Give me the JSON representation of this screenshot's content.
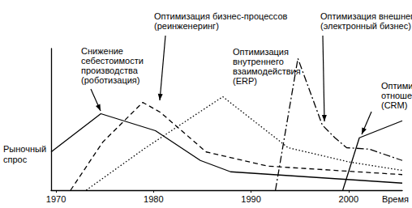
{
  "chart_data": {
    "type": "line",
    "x_label": "Время",
    "y_label": "Рыночный\nспрос",
    "xlim": [
      1969.5,
      2005.5
    ],
    "xticks": [
      1970,
      1980,
      1990,
      2000
    ],
    "ylim": [
      0,
      10
    ],
    "tick_labels": "x",
    "grid": false,
    "series": [
      {
        "annotation": "Снижение\nсебестоимости\nпроизводства\n(роботизация)",
        "color": "#000000",
        "line_style": "solid",
        "x": [
          1969.5,
          1974.6,
          1980.2,
          1984.8,
          1987.9,
          2005.5
        ],
        "values": [
          2.7,
          5.4,
          4.2,
          2.1,
          1.3,
          0.5
        ]
      },
      {
        "annotation": "Оптимизация бизнес-процессов\n(реинженеринг)",
        "color": "#000000",
        "line_style": "dashed",
        "x": [
          1971.5,
          1974.8,
          1978.9,
          1980.7,
          1985.4,
          1991.7,
          2005.5
        ],
        "values": [
          0,
          3.4,
          6.2,
          5.5,
          2.7,
          1.7,
          1.1
        ]
      },
      {
        "annotation": "Оптимизация\nвнутреннего\nвзаимодействия\n(ERP)",
        "color": "#000000",
        "line_style": "dotted",
        "x": [
          1973.1,
          1979.2,
          1987.1,
          1993.8,
          2000,
          2005.5
        ],
        "values": [
          0,
          3.0,
          6.6,
          3.0,
          2.0,
          1.4
        ]
      },
      {
        "annotation": "Оптимизация внешнего взаимодействия\n(электронный бизнес)",
        "color": "#000000",
        "line_style": "dashdot",
        "x": [
          1992.5,
          1994.8,
          1997.3,
          1998.6,
          1999.8,
          2002.1,
          2005.5
        ],
        "values": [
          0,
          9.3,
          4.6,
          3.7,
          3.0,
          2.9,
          2.1
        ]
      },
      {
        "annotation": "Оптимизация\nотношений\n(CRM)",
        "color": "#000000",
        "line_style": "solid",
        "x": [
          1999.4,
          2001.1,
          2005.5
        ],
        "values": [
          0,
          3.7,
          4.9
        ]
      }
    ]
  }
}
